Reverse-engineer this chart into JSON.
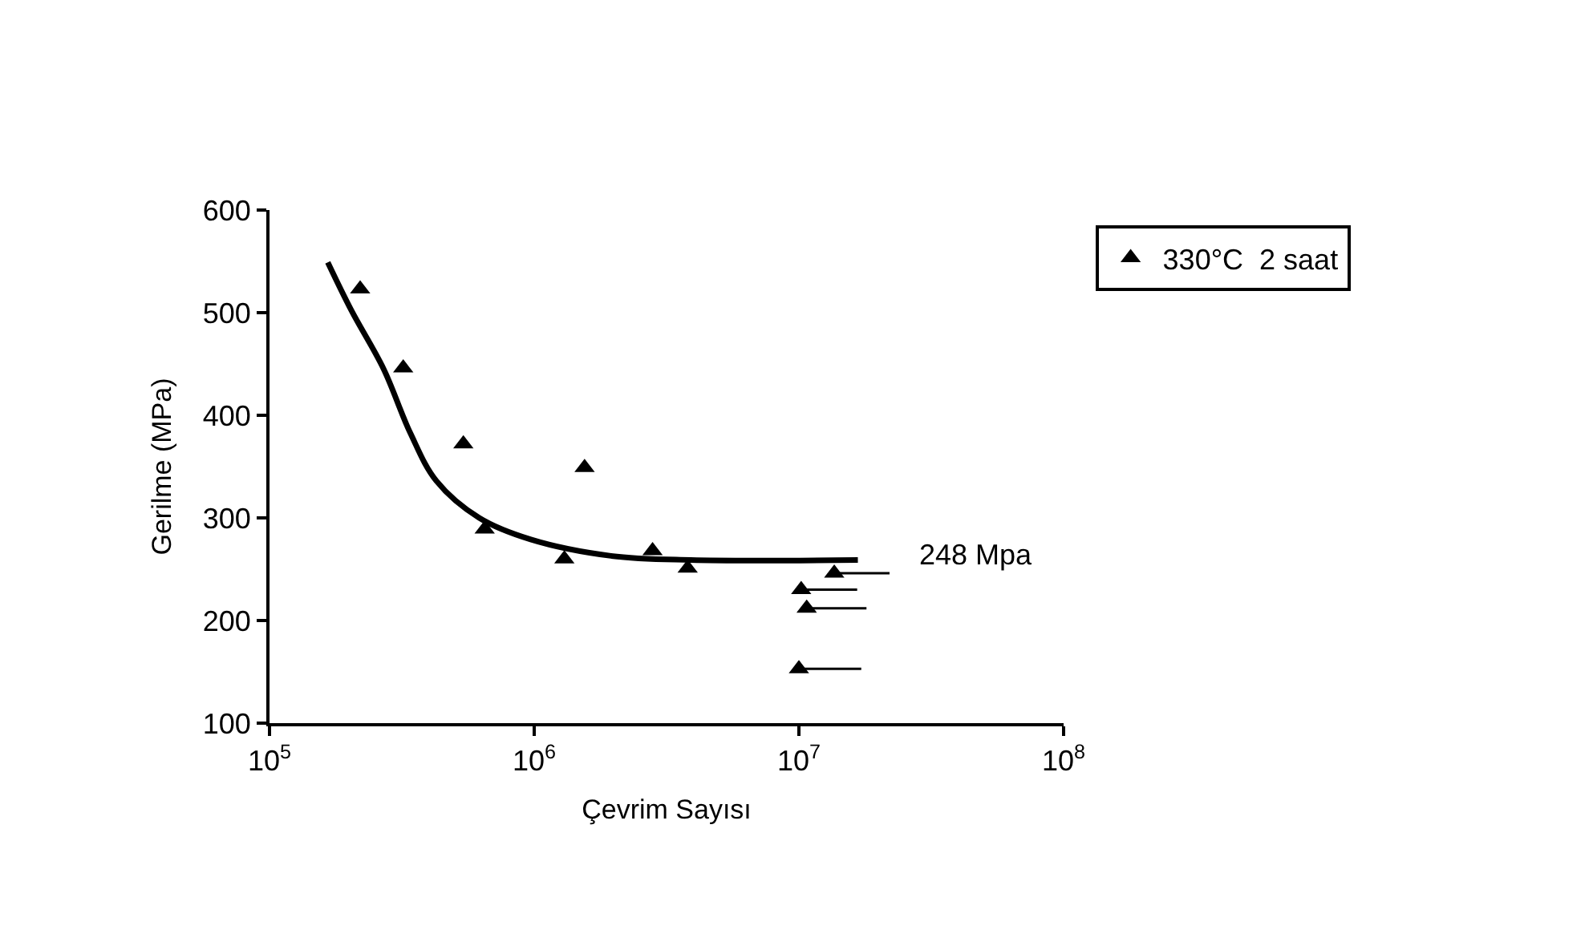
{
  "chart_data": {
    "type": "scatter",
    "xlabel": "Çevrim Sayısı",
    "ylabel": "Gerilme (MPa)",
    "log": "x",
    "xlim": [
      100000,
      100000000
    ],
    "ylim": [
      100,
      600
    ],
    "xticks": [
      {
        "value": 100000,
        "label": "10$^{5}$"
      },
      {
        "value": 1000000,
        "label": "10$^{6}$"
      },
      {
        "value": 10000000,
        "label": "10$^{7}$"
      },
      {
        "value": 100000000,
        "label": "10$^{8}$"
      }
    ],
    "yticks": [
      100,
      200,
      300,
      400,
      500,
      600
    ],
    "legend": "top right",
    "series": [
      {
        "name": "330°C  2 saat",
        "marker": "triangle",
        "color": "#000000",
        "x": [
          220000,
          320000,
          540000,
          650000,
          1300000,
          1550000,
          2800000,
          3800000,
          13600000,
          10200000,
          10700000,
          10000000
        ],
        "values": [
          523,
          446,
          372,
          289,
          260,
          349,
          268,
          251,
          246,
          230,
          212,
          153
        ],
        "xerrors": [
          null,
          null,
          null,
          null,
          null,
          null,
          null,
          null,
          [
            13600000,
            22000000
          ],
          [
            10200000,
            16600000
          ],
          [
            10700000,
            18000000
          ],
          [
            10000000,
            17200000
          ]
        ]
      },
      {
        "type": "line",
        "marker": "none",
        "color": "#000000",
        "x": [
          166000,
          204000,
          270000,
          340000,
          427000,
          620000,
          970000,
          1950000,
          3900000,
          16700000
        ],
        "values": [
          549,
          502,
          445,
          383,
          336,
          300,
          279,
          263,
          259,
          259
        ]
      }
    ],
    "annotations": [
      "248 Mpa"
    ]
  }
}
